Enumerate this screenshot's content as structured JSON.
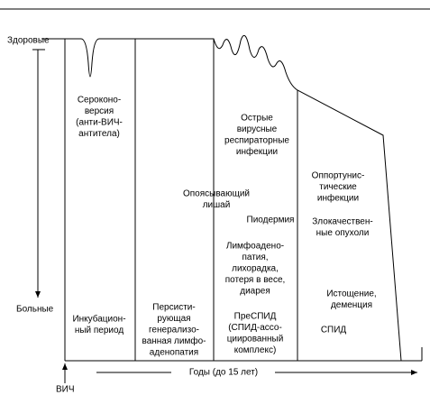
{
  "axis": {
    "top": "Здоровые",
    "bottom": "Больные",
    "origin": "ВИЧ",
    "time": "Годы (до 15 лет)"
  },
  "stages": [
    {
      "label": [
        "Инкубацион-",
        "ный период"
      ]
    },
    {
      "label": [
        "Персисти-",
        "рующая",
        "генерализо-",
        "ванная лимфо-",
        "аденопатия"
      ]
    },
    {
      "label": [
        "ПреСПИД",
        "(СПИД-ассо-",
        "циированный",
        "комплекс)"
      ]
    },
    {
      "label": [
        "СПИД"
      ]
    }
  ],
  "events": [
    {
      "label": [
        "Сероконо-",
        "версия",
        "(анти-ВИЧ-",
        "антитела)"
      ]
    },
    {
      "label": [
        "Острые",
        "вирусные",
        "респираторные",
        "инфекции"
      ]
    },
    {
      "label": [
        "Опоясывающий",
        "лишай"
      ]
    },
    {
      "label": [
        "Пиодермия"
      ]
    },
    {
      "label": [
        "Лимфоадено-",
        "патия,",
        "лихорадка,",
        "потеря в весе,",
        "диарея"
      ]
    },
    {
      "label": [
        "Оппортунис-",
        "тические",
        "инфекции"
      ]
    },
    {
      "label": [
        "Злокачествен-",
        "ные опухоли"
      ]
    },
    {
      "label": [
        "Истощение,",
        "деменция"
      ]
    }
  ]
}
